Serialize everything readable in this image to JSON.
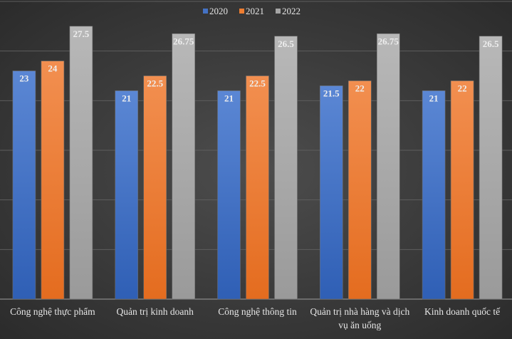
{
  "chart_data": {
    "type": "bar",
    "title": "",
    "xlabel": "",
    "ylabel": "",
    "ylim": [
      0,
      30
    ],
    "grid": true,
    "legend_position": "top-right",
    "categories": [
      "Công nghệ thực phẩm",
      "Quản trị kinh doanh",
      "Công nghệ thông tin",
      "Quản trị nhà hàng và dịch vụ ăn uống",
      "Kinh doanh quốc tế"
    ],
    "category_lines": [
      [
        "Công nghệ thực phẩm"
      ],
      [
        "Quản trị kinh doanh"
      ],
      [
        "Công nghệ thông tin"
      ],
      [
        "Quản trị nhà hàng và dịch",
        "vụ ăn uống"
      ],
      [
        "Kinh doanh quốc tế"
      ]
    ],
    "series": [
      {
        "name": "2020",
        "color": "#4472c4",
        "values": [
          23,
          21,
          21,
          21.5,
          21
        ],
        "labels": [
          "23",
          "21",
          "21",
          "21.5",
          "21"
        ]
      },
      {
        "name": "2021",
        "color": "#ed7d31",
        "values": [
          24,
          22.5,
          22.5,
          22,
          22
        ],
        "labels": [
          "24",
          "22.5",
          "22.5",
          "22",
          "22"
        ]
      },
      {
        "name": "2022",
        "color": "#a5a5a5",
        "values": [
          27.5,
          26.75,
          26.5,
          26.75,
          26.5
        ],
        "labels": [
          "27.5",
          "26.75",
          "26.5",
          "26.75",
          "26.5"
        ]
      }
    ]
  }
}
